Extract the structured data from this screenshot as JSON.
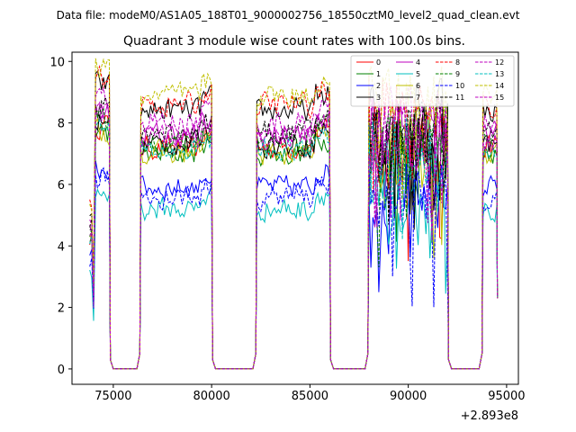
{
  "chart_data": {
    "type": "line",
    "suptitle": "Data file: modeM0/AS1A05_188T01_9000002756_18550cztM0_level2_quad_clean.evt",
    "title": "Quadrant 3 module wise count rates with 100.0s bins.",
    "xlabel": "",
    "ylabel": "",
    "x_offset_label": "+2.893e8",
    "xlim": [
      72900,
      95600
    ],
    "ylim": [
      -0.5,
      10.3
    ],
    "x_ticks": [
      75000,
      80000,
      85000,
      90000,
      95000
    ],
    "x_tick_labels": [
      "75000",
      "80000",
      "85000",
      "90000",
      "95000"
    ],
    "y_ticks": [
      0,
      2,
      4,
      6,
      8,
      10
    ],
    "y_tick_labels": [
      "0",
      "2",
      "4",
      "6",
      "8",
      "10"
    ],
    "legend_position": "top-right",
    "legend_columns": 4,
    "segments": [
      {
        "start": 73800,
        "end": 74800
      },
      {
        "start": 76400,
        "end": 80000
      },
      {
        "start": 82300,
        "end": 86000
      },
      {
        "start": 88000,
        "end": 92000
      },
      {
        "start": 93800,
        "end": 94500
      }
    ],
    "series": [
      {
        "name": "0",
        "color": "#ff0000",
        "style": "solid",
        "level": 7.2
      },
      {
        "name": "1",
        "color": "#008000",
        "style": "solid",
        "level": 7.0
      },
      {
        "name": "2",
        "color": "#0000ff",
        "style": "solid",
        "level": 5.9
      },
      {
        "name": "3",
        "color": "#000000",
        "style": "solid",
        "level": 8.4
      },
      {
        "name": "4",
        "color": "#bf00bf",
        "style": "solid",
        "level": 7.6
      },
      {
        "name": "5",
        "color": "#00bfbf",
        "style": "solid",
        "level": 5.2
      },
      {
        "name": "6",
        "color": "#bfbf00",
        "style": "solid",
        "level": 7.0
      },
      {
        "name": "7",
        "color": "#000000",
        "style": "solid",
        "level": 7.3
      },
      {
        "name": "8",
        "color": "#ff0000",
        "style": "dashed",
        "level": 8.6
      },
      {
        "name": "9",
        "color": "#008000",
        "style": "dashed",
        "level": 7.4
      },
      {
        "name": "10",
        "color": "#0000ff",
        "style": "dashed",
        "level": 5.6
      },
      {
        "name": "11",
        "color": "#000000",
        "style": "dashed",
        "level": 7.7
      },
      {
        "name": "12",
        "color": "#bf00bf",
        "style": "dashed",
        "level": 8.0
      },
      {
        "name": "13",
        "color": "#00bfbf",
        "style": "dashed",
        "level": 7.1
      },
      {
        "name": "14",
        "color": "#bfbf00",
        "style": "dashed",
        "level": 8.9
      },
      {
        "name": "15",
        "color": "#bf00bf",
        "style": "dashed",
        "level": 7.5
      }
    ]
  }
}
